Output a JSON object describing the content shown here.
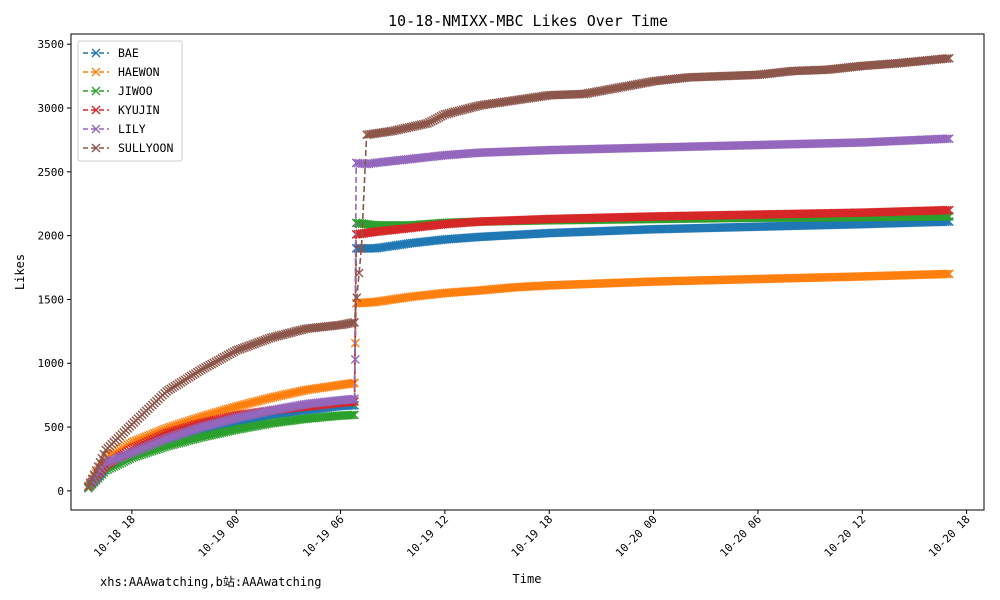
{
  "chart_data": {
    "type": "line",
    "title": "10-18-NMIXX-MBC Likes Over Time",
    "xlabel": "Time",
    "ylabel": "Likes",
    "x_ticks": [
      "10-18 18",
      "10-19 00",
      "10-19 06",
      "10-19 12",
      "10-19 18",
      "10-20 00",
      "10-20 06",
      "10-20 12",
      "10-20 18"
    ],
    "x_tick_hours": [
      18,
      24,
      30,
      36,
      42,
      48,
      54,
      60,
      66
    ],
    "xlim": [
      14.5,
      67.0
    ],
    "y_ticks": [
      0,
      500,
      1000,
      1500,
      2000,
      2500,
      3000,
      3500
    ],
    "ylim": [
      -150,
      3580
    ],
    "grid": false,
    "legend_position": "top-left",
    "marker": "x",
    "line_style": "dashed",
    "series": [
      {
        "name": "BAE",
        "color": "#1f77b4",
        "x": [
          15.5,
          16.5,
          18,
          20,
          22,
          24,
          26,
          28,
          30,
          30.8,
          30.9,
          32,
          34,
          36,
          38,
          42,
          48,
          54,
          60,
          65
        ],
        "y": [
          30,
          180,
          280,
          390,
          470,
          530,
          585,
          630,
          665,
          670,
          1900,
          1900,
          1940,
          1970,
          1990,
          2020,
          2050,
          2070,
          2090,
          2110
        ]
      },
      {
        "name": "HAEWON",
        "color": "#ff7f0e",
        "x": [
          15.5,
          16.5,
          18,
          20,
          22,
          24,
          26,
          28,
          30,
          30.8,
          30.9,
          32,
          34,
          36,
          38,
          40,
          42,
          48,
          54,
          60,
          65
        ],
        "y": [
          40,
          260,
          380,
          490,
          580,
          660,
          730,
          790,
          830,
          845,
          1470,
          1480,
          1520,
          1550,
          1570,
          1595,
          1610,
          1640,
          1660,
          1680,
          1700
        ]
      },
      {
        "name": "JIWOO",
        "color": "#2ca02c",
        "x": [
          15.5,
          16.5,
          18,
          20,
          22,
          24,
          26,
          28,
          30,
          30.8,
          30.9,
          32,
          34,
          36,
          38,
          42,
          48,
          54,
          60,
          65
        ],
        "y": [
          20,
          160,
          260,
          350,
          420,
          480,
          530,
          565,
          590,
          595,
          2100,
          2080,
          2080,
          2100,
          2110,
          2120,
          2130,
          2140,
          2145,
          2150
        ]
      },
      {
        "name": "KYUJIN",
        "color": "#d62728",
        "x": [
          15.5,
          16.5,
          18,
          20,
          22,
          24,
          26,
          28,
          30,
          30.8,
          30.9,
          32,
          34,
          36,
          38,
          42,
          48,
          54,
          60,
          65
        ],
        "y": [
          30,
          200,
          330,
          450,
          530,
          590,
          630,
          660,
          690,
          700,
          2010,
          2030,
          2060,
          2090,
          2110,
          2130,
          2150,
          2165,
          2180,
          2200
        ]
      },
      {
        "name": "LILY",
        "color": "#9467bd",
        "x": [
          15.5,
          16.5,
          18,
          20,
          22,
          24,
          26,
          28,
          30,
          30.8,
          30.9,
          31.5,
          32,
          34,
          36,
          38,
          42,
          48,
          54,
          60,
          65
        ],
        "y": [
          30,
          220,
          300,
          410,
          500,
          570,
          630,
          680,
          710,
          720,
          2570,
          2560,
          2570,
          2600,
          2630,
          2650,
          2670,
          2690,
          2710,
          2730,
          2760
        ]
      },
      {
        "name": "SULLYOON",
        "color": "#8c564b",
        "x": [
          15.5,
          16.5,
          18,
          20,
          22,
          24,
          26,
          28,
          30,
          30.8,
          31.2,
          31.5,
          33,
          35,
          36,
          38,
          40,
          42,
          44,
          46,
          48,
          50,
          52,
          54,
          56,
          58,
          60,
          62,
          65
        ],
        "y": [
          30,
          320,
          520,
          780,
          950,
          1100,
          1200,
          1270,
          1300,
          1320,
          1900,
          2790,
          2820,
          2880,
          2950,
          3020,
          3060,
          3100,
          3110,
          3160,
          3210,
          3240,
          3250,
          3260,
          3290,
          3300,
          3330,
          3350,
          3390
        ]
      }
    ]
  },
  "extra_points": [
    {
      "series": "LILY",
      "x": 30.85,
      "y": 1030
    }
  ],
  "watermark": "xhs:AAAwatching,b站:AAAwatching"
}
